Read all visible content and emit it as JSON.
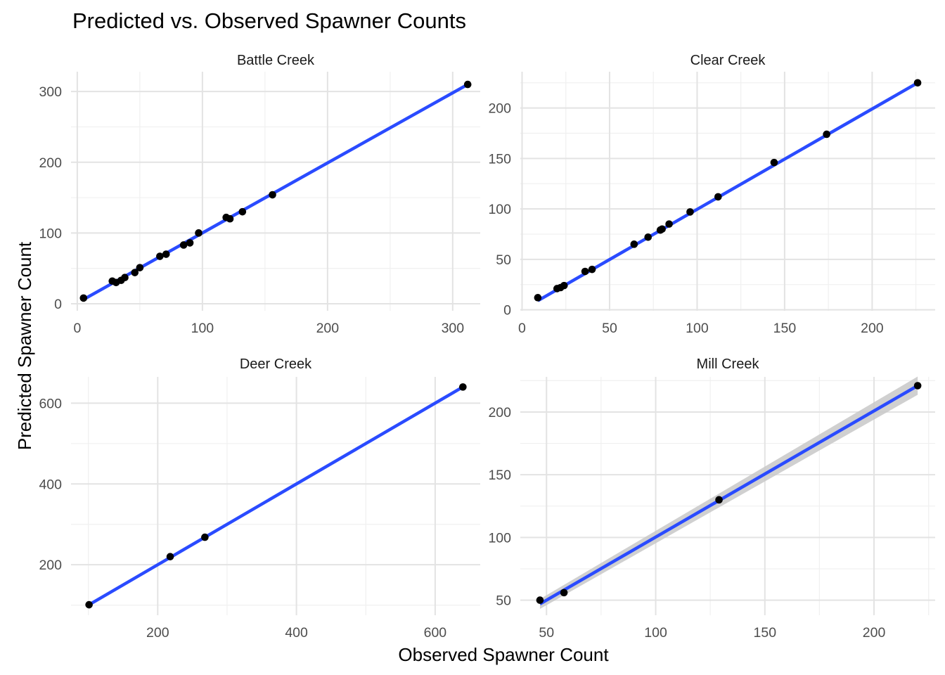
{
  "title": "Predicted vs. Observed Spawner Counts",
  "xlabel": "Observed Spawner Count",
  "ylabel": "Predicted Spawner Count",
  "chart_data": [
    {
      "type": "scatter",
      "facet": "Battle Creek",
      "xlim": [
        -5,
        322
      ],
      "ylim": [
        -10,
        328
      ],
      "xticks": [
        0,
        100,
        200,
        300
      ],
      "yticks": [
        0,
        100,
        200,
        300
      ],
      "x_minor": [
        50,
        150,
        250
      ],
      "y_minor": [
        50,
        150,
        250
      ],
      "points": [
        [
          5,
          8
        ],
        [
          28,
          32
        ],
        [
          31,
          30
        ],
        [
          35,
          33
        ],
        [
          38,
          37
        ],
        [
          46,
          44
        ],
        [
          50,
          51
        ],
        [
          66,
          67
        ],
        [
          71,
          70
        ],
        [
          85,
          83
        ],
        [
          90,
          86
        ],
        [
          97,
          100
        ],
        [
          119,
          122
        ],
        [
          122,
          120
        ],
        [
          132,
          130
        ],
        [
          156,
          154
        ],
        [
          312,
          310
        ]
      ],
      "fit": [
        [
          5,
          6
        ],
        [
          312,
          310
        ]
      ],
      "band": false
    },
    {
      "type": "scatter",
      "facet": "Clear Creek",
      "xlim": [
        -1,
        236
      ],
      "ylim": [
        -1,
        236
      ],
      "xticks": [
        0,
        50,
        100,
        150,
        200
      ],
      "yticks": [
        0,
        50,
        100,
        150,
        200
      ],
      "x_minor": [
        25,
        75,
        125,
        175,
        225
      ],
      "y_minor": [
        25,
        75,
        125,
        175,
        225
      ],
      "points": [
        [
          9,
          12
        ],
        [
          20,
          21
        ],
        [
          22,
          22
        ],
        [
          24,
          24
        ],
        [
          36,
          38
        ],
        [
          40,
          40
        ],
        [
          64,
          65
        ],
        [
          72,
          72
        ],
        [
          79,
          79
        ],
        [
          80,
          80
        ],
        [
          84,
          85
        ],
        [
          96,
          97
        ],
        [
          112,
          112
        ],
        [
          144,
          146
        ],
        [
          174,
          174
        ],
        [
          226,
          225
        ]
      ],
      "fit": [
        [
          9,
          9
        ],
        [
          226,
          225
        ]
      ],
      "band": false
    },
    {
      "type": "scatter",
      "facet": "Deer Creek",
      "xlim": [
        75,
        665
      ],
      "ylim": [
        75,
        665
      ],
      "xticks": [
        200,
        400,
        600
      ],
      "yticks": [
        200,
        400,
        600
      ],
      "x_minor": [
        100,
        300,
        500
      ],
      "y_minor": [
        100,
        300,
        500
      ],
      "points": [
        [
          101,
          101
        ],
        [
          218,
          220
        ],
        [
          268,
          268
        ],
        [
          640,
          640
        ]
      ],
      "fit": [
        [
          101,
          101
        ],
        [
          640,
          640
        ]
      ],
      "band": false
    },
    {
      "type": "scatter",
      "facet": "Mill Creek",
      "xlim": [
        38,
        228
      ],
      "ylim": [
        38,
        228
      ],
      "xticks": [
        50,
        100,
        150,
        200
      ],
      "yticks": [
        50,
        100,
        150,
        200
      ],
      "x_minor": [
        75,
        125,
        175,
        225
      ],
      "y_minor": [
        75,
        125,
        175,
        225
      ],
      "points": [
        [
          47,
          50
        ],
        [
          58,
          56
        ],
        [
          129,
          130
        ],
        [
          220,
          221
        ]
      ],
      "fit": [
        [
          47,
          47
        ],
        [
          220,
          221
        ]
      ],
      "band": true
    }
  ]
}
